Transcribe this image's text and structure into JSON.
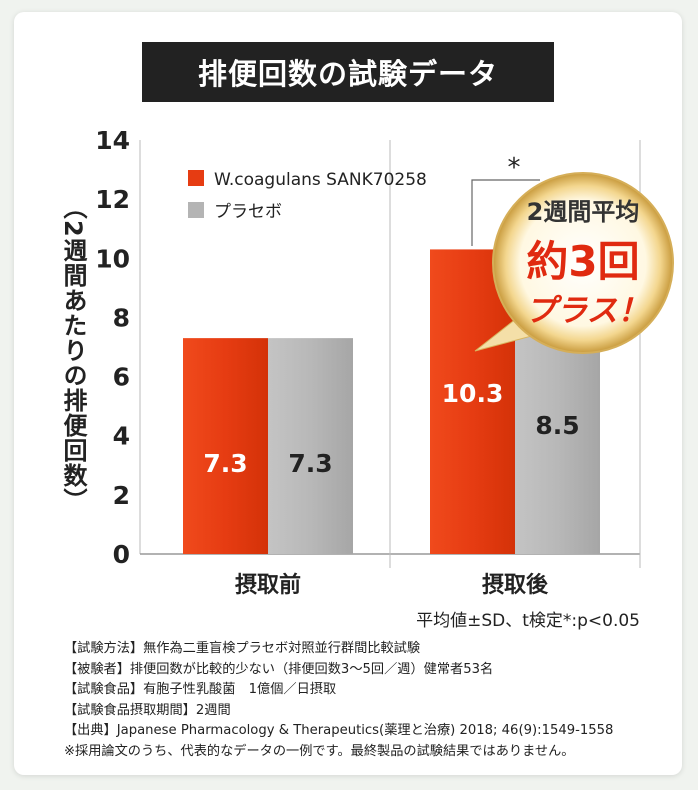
{
  "title": "排便回数の試験データ",
  "ylabel": "（2週間あたりの排便回数）",
  "stats_note": "平均値±SD、t検定*:p<0.05",
  "notes": [
    "【試験方法】無作為二重盲検プラセボ対照並行群間比較試験",
    "【被験者】排便回数が比較的少ない（排便回数3～5回／週）健常者53名",
    "【試験食品】有胞子性乳酸菌　1億個／日摂取",
    "【試験食品摂取期間】2週間",
    "【出典】Japanese Pharmacology & Therapeutics(薬理と治療) 2018; 46(9):1549-1558",
    "※採用論文のうち、代表的なデータの一例です。最終製品の試験結果ではありません。"
  ],
  "badge": {
    "line1": "2週間平均",
    "line2": "約3回",
    "line3": "プラス！"
  },
  "significance_mark": "*",
  "chart_data": {
    "type": "bar",
    "categories": [
      "摂取前",
      "摂取後"
    ],
    "series": [
      {
        "name": "W.coagulans SANK70258",
        "values": [
          7.3,
          10.3
        ],
        "color": "#e63c12"
      },
      {
        "name": "プラセボ",
        "values": [
          7.3,
          8.5
        ],
        "color": "#b4b4b4"
      }
    ],
    "ylim": [
      0,
      14
    ],
    "yticks": [
      0,
      2,
      4,
      6,
      8,
      10,
      12,
      14
    ],
    "value_labels": [
      "7.3",
      "10.3",
      "7.3",
      "8.5"
    ],
    "legend_position": "top-left"
  }
}
